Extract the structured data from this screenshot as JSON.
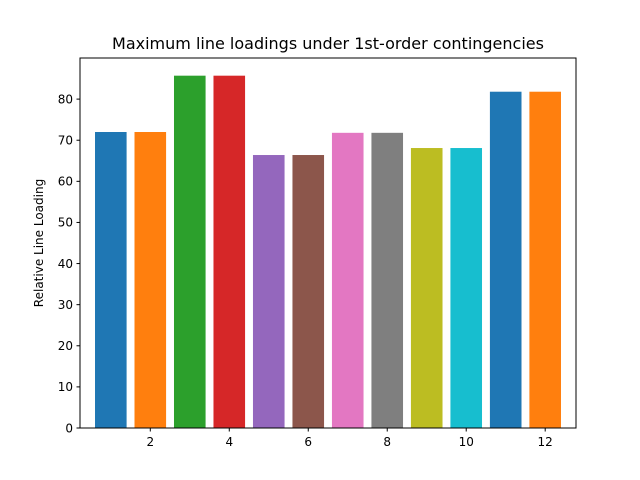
{
  "chart_data": {
    "type": "bar",
    "title": "Maximum line loadings under 1st-order contingencies",
    "xlabel": "",
    "ylabel": "Relative Line Loading",
    "x": [
      1,
      2,
      3,
      4,
      5,
      6,
      7,
      8,
      9,
      10,
      11,
      12
    ],
    "values": [
      72.0,
      72.0,
      85.7,
      85.7,
      66.4,
      66.4,
      71.8,
      71.8,
      68.1,
      68.1,
      81.8,
      81.8
    ],
    "colors": [
      "#1f77b4",
      "#ff7f0e",
      "#2ca02c",
      "#d62728",
      "#9467bd",
      "#8c564b",
      "#e377c2",
      "#7f7f7f",
      "#bcbd22",
      "#17becf",
      "#1f77b4",
      "#ff7f0e"
    ],
    "xlim": [
      0.22,
      12.78
    ],
    "ylim": [
      0,
      90
    ],
    "xticks": [
      2,
      4,
      6,
      8,
      10,
      12
    ],
    "yticks": [
      0,
      10,
      20,
      30,
      40,
      50,
      60,
      70,
      80
    ],
    "grid": false
  }
}
